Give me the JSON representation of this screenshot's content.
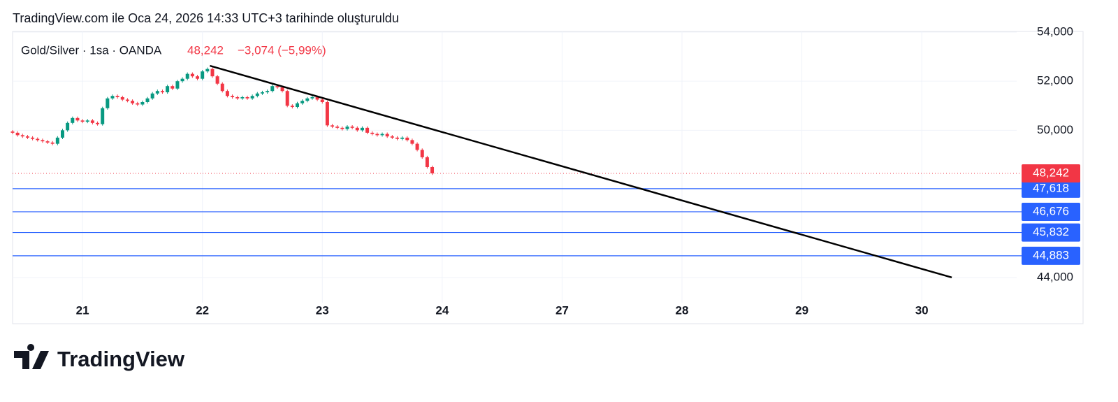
{
  "header": "TradingView.com ile Oca 24, 2026 14:33 UTC+3 tarihinde oluşturuldu",
  "brand": "TradingView",
  "chart_data": {
    "type": "candlestick",
    "title": "Gold/Silver · 1sa · OANDA",
    "last": {
      "value": 48242,
      "label": "48,242"
    },
    "change": "−3,074 (−5,99%)",
    "up_color": "#089981",
    "down_color": "#f23645",
    "level_color": "#2962ff",
    "xlim": [
      -14,
      187
    ],
    "ylim": [
      42114,
      54029
    ],
    "xticks": [
      {
        "value": 0,
        "label": "21"
      },
      {
        "value": 24,
        "label": "22"
      },
      {
        "value": 48,
        "label": "23"
      },
      {
        "value": 72,
        "label": "24"
      },
      {
        "value": 96,
        "label": "27"
      },
      {
        "value": 120,
        "label": "28"
      },
      {
        "value": 144,
        "label": "29"
      },
      {
        "value": 168,
        "label": "30"
      }
    ],
    "yticks": [
      {
        "value": 44000,
        "label": "44,000"
      },
      {
        "value": 50000,
        "label": "50,000"
      },
      {
        "value": 52000,
        "label": "52,000"
      },
      {
        "value": 54000,
        "label": "54,000"
      }
    ],
    "grid": true,
    "x": [
      -14,
      -13,
      -12,
      -11,
      -10,
      -9,
      -8,
      -7,
      -6,
      -5,
      -4,
      -3,
      -2,
      -1,
      0,
      1,
      2,
      3,
      4,
      5,
      6,
      7,
      8,
      9,
      10,
      11,
      12,
      13,
      14,
      15,
      16,
      17,
      18,
      19,
      20,
      21,
      22,
      23,
      24,
      25,
      26,
      27,
      28,
      29,
      30,
      31,
      32,
      33,
      34,
      35,
      36,
      37,
      38,
      39,
      40,
      41,
      42,
      43,
      44,
      45,
      46,
      47,
      48,
      49,
      50,
      51,
      52,
      53,
      54,
      55,
      56,
      57,
      58,
      59,
      60,
      61,
      62,
      63,
      64,
      65,
      66,
      67,
      68,
      69,
      70
    ],
    "ohlc": [
      [
        49950,
        50010,
        49840,
        49900
      ],
      [
        49900,
        49960,
        49740,
        49800
      ],
      [
        49800,
        49860,
        49690,
        49750
      ],
      [
        49750,
        49810,
        49640,
        49700
      ],
      [
        49700,
        49760,
        49590,
        49650
      ],
      [
        49650,
        49710,
        49540,
        49600
      ],
      [
        49600,
        49660,
        49490,
        49550
      ],
      [
        49550,
        49610,
        49440,
        49500
      ],
      [
        49500,
        49560,
        49390,
        49450
      ],
      [
        49450,
        49760,
        49390,
        49700
      ],
      [
        49700,
        50060,
        49640,
        50000
      ],
      [
        50000,
        50360,
        49940,
        50300
      ],
      [
        50300,
        50560,
        50240,
        50500
      ],
      [
        50500,
        50560,
        50340,
        50400
      ],
      [
        50400,
        50460,
        50290,
        50350
      ],
      [
        50350,
        50460,
        50290,
        50400
      ],
      [
        50400,
        50460,
        50240,
        50300
      ],
      [
        50300,
        50360,
        50190,
        50250
      ],
      [
        50250,
        50960,
        50190,
        50900
      ],
      [
        50900,
        51360,
        50840,
        51300
      ],
      [
        51300,
        51460,
        51240,
        51400
      ],
      [
        51400,
        51460,
        51290,
        51350
      ],
      [
        51350,
        51410,
        51190,
        51250
      ],
      [
        51250,
        51310,
        51140,
        51200
      ],
      [
        51200,
        51260,
        51040,
        51100
      ],
      [
        51100,
        51160,
        50990,
        51050
      ],
      [
        51050,
        51210,
        50990,
        51150
      ],
      [
        51150,
        51360,
        51090,
        51300
      ],
      [
        51300,
        51560,
        51240,
        51500
      ],
      [
        51500,
        51660,
        51440,
        51600
      ],
      [
        51600,
        51660,
        51490,
        51550
      ],
      [
        51550,
        51860,
        51490,
        51800
      ],
      [
        51800,
        51860,
        51640,
        51700
      ],
      [
        51700,
        52060,
        51640,
        52000
      ],
      [
        52000,
        52160,
        51940,
        52100
      ],
      [
        52100,
        52360,
        52040,
        52300
      ],
      [
        52300,
        52360,
        52140,
        52200
      ],
      [
        52200,
        52260,
        52040,
        52100
      ],
      [
        52100,
        52460,
        52040,
        52400
      ],
      [
        52400,
        52560,
        52340,
        52500
      ],
      [
        52500,
        52560,
        52140,
        52200
      ],
      [
        52200,
        52260,
        51840,
        51900
      ],
      [
        51900,
        51960,
        51540,
        51600
      ],
      [
        51600,
        51660,
        51340,
        51400
      ],
      [
        51400,
        51460,
        51290,
        51350
      ],
      [
        51350,
        51410,
        51240,
        51300
      ],
      [
        51300,
        51410,
        51240,
        51350
      ],
      [
        51350,
        51410,
        51240,
        51300
      ],
      [
        51300,
        51460,
        51240,
        51400
      ],
      [
        51400,
        51560,
        51340,
        51500
      ],
      [
        51500,
        51610,
        51440,
        51550
      ],
      [
        51550,
        51660,
        51490,
        51600
      ],
      [
        51600,
        51860,
        51540,
        51800
      ],
      [
        51800,
        51860,
        51690,
        51750
      ],
      [
        51750,
        51810,
        51540,
        51600
      ],
      [
        51600,
        51660,
        50940,
        51000
      ],
      [
        51000,
        51060,
        50890,
        50950
      ],
      [
        50950,
        51160,
        50890,
        51100
      ],
      [
        51100,
        51260,
        51040,
        51200
      ],
      [
        51200,
        51360,
        51140,
        51300
      ],
      [
        51300,
        51410,
        51240,
        51350
      ],
      [
        51350,
        51410,
        51190,
        51250
      ],
      [
        51250,
        51310,
        51090,
        51150
      ],
      [
        51150,
        51210,
        50140,
        50200
      ],
      [
        50200,
        50260,
        50090,
        50150
      ],
      [
        50150,
        50210,
        50040,
        50100
      ],
      [
        50100,
        50160,
        49990,
        50050
      ],
      [
        50050,
        50210,
        49990,
        50150
      ],
      [
        50150,
        50210,
        50040,
        50100
      ],
      [
        50100,
        50160,
        49940,
        50000
      ],
      [
        50000,
        50160,
        49940,
        50100
      ],
      [
        50100,
        50160,
        49840,
        49900
      ],
      [
        49900,
        49960,
        49790,
        49850
      ],
      [
        49850,
        49910,
        49740,
        49800
      ],
      [
        49800,
        49910,
        49740,
        49850
      ],
      [
        49850,
        49910,
        49690,
        49750
      ],
      [
        49750,
        49810,
        49640,
        49700
      ],
      [
        49700,
        49760,
        49590,
        49650
      ],
      [
        49650,
        49760,
        49590,
        49700
      ],
      [
        49700,
        49760,
        49540,
        49600
      ],
      [
        49600,
        49660,
        49390,
        49450
      ],
      [
        49450,
        49510,
        49140,
        49200
      ],
      [
        49200,
        49260,
        48840,
        48900
      ],
      [
        48900,
        48960,
        48440,
        48500
      ],
      [
        48500,
        48560,
        48180,
        48242
      ]
    ],
    "levels": [
      {
        "value": 47618,
        "label": "47,618"
      },
      {
        "value": 46676,
        "label": "46,676"
      },
      {
        "value": 45832,
        "label": "45,832"
      },
      {
        "value": 44883,
        "label": "44,883"
      }
    ],
    "trendline": {
      "x": [
        25.5,
        174
      ],
      "y": [
        52630,
        44000
      ]
    }
  }
}
